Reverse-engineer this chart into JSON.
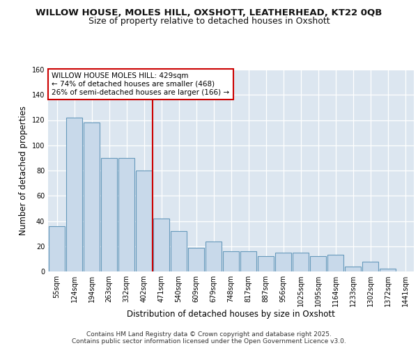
{
  "title1": "WILLOW HOUSE, MOLES HILL, OXSHOTT, LEATHERHEAD, KT22 0QB",
  "title2": "Size of property relative to detached houses in Oxshott",
  "xlabel": "Distribution of detached houses by size in Oxshott",
  "ylabel": "Number of detached properties",
  "categories": [
    "55sqm",
    "124sqm",
    "194sqm",
    "263sqm",
    "332sqm",
    "402sqm",
    "471sqm",
    "540sqm",
    "609sqm",
    "679sqm",
    "748sqm",
    "817sqm",
    "887sqm",
    "956sqm",
    "1025sqm",
    "1095sqm",
    "1164sqm",
    "1233sqm",
    "1302sqm",
    "1372sqm",
    "1441sqm"
  ],
  "values": [
    36,
    122,
    118,
    90,
    90,
    80,
    42,
    32,
    19,
    24,
    16,
    16,
    12,
    15,
    15,
    12,
    13,
    4,
    8,
    2,
    0
  ],
  "bar_color": "#c8d9ea",
  "bar_edge_color": "#6699bb",
  "vline_x_idx": 6,
  "vline_color": "#cc0000",
  "annotation_text": "WILLOW HOUSE MOLES HILL: 429sqm\n← 74% of detached houses are smaller (468)\n26% of semi-detached houses are larger (166) →",
  "annotation_box_color": "#ffffff",
  "annotation_box_edge": "#cc0000",
  "ylim": [
    0,
    160
  ],
  "yticks": [
    0,
    20,
    40,
    60,
    80,
    100,
    120,
    140,
    160
  ],
  "footer": "Contains HM Land Registry data © Crown copyright and database right 2025.\nContains public sector information licensed under the Open Government Licence v3.0.",
  "bg_color": "#ffffff",
  "plot_bg_color": "#dce6f0",
  "grid_color": "#ffffff",
  "title1_fontsize": 9.5,
  "title2_fontsize": 9,
  "axis_label_fontsize": 8.5,
  "tick_fontsize": 7,
  "annot_fontsize": 7.5,
  "footer_fontsize": 6.5
}
